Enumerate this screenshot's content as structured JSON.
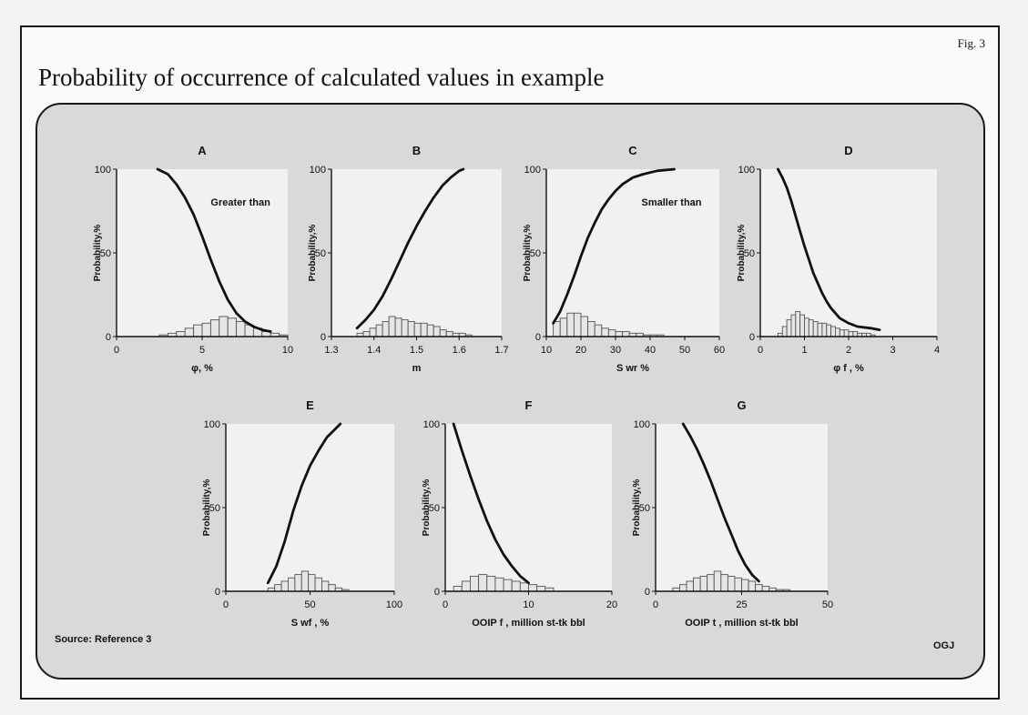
{
  "fig_label": "Fig. 3",
  "title": "Probability of occurrence of calculated values in example",
  "source": "Source: Reference 3",
  "credit": "OGJ",
  "chart_data": [
    {
      "letter": "A",
      "type": "line+histogram",
      "xlabel": "φ, %",
      "ylabel": "Probability,%",
      "xlim": [
        0,
        10
      ],
      "ylim": [
        0,
        100
      ],
      "xticks": [
        0,
        5,
        10
      ],
      "yticks": [
        0,
        50,
        100
      ],
      "annotation": "Greater than",
      "curve": [
        [
          2.4,
          100
        ],
        [
          3.0,
          97
        ],
        [
          3.5,
          91
        ],
        [
          4.0,
          83
        ],
        [
          4.5,
          73
        ],
        [
          5.0,
          60
        ],
        [
          5.5,
          46
        ],
        [
          6.0,
          33
        ],
        [
          6.5,
          22
        ],
        [
          7.0,
          14
        ],
        [
          7.5,
          9
        ],
        [
          8.0,
          6
        ],
        [
          8.5,
          4
        ],
        [
          9.0,
          3
        ]
      ],
      "histogram": {
        "start": 2.5,
        "width": 0.5,
        "values": [
          1,
          2,
          3,
          5,
          7,
          8,
          10,
          12,
          11,
          9,
          7,
          5,
          3,
          2,
          1
        ]
      }
    },
    {
      "letter": "B",
      "type": "line+histogram",
      "xlabel": "m",
      "ylabel": "Probability,%",
      "xlim": [
        1.3,
        1.7
      ],
      "ylim": [
        0,
        100
      ],
      "xticks": [
        1.3,
        1.4,
        1.5,
        1.6,
        1.7
      ],
      "yticks": [
        0,
        50,
        100
      ],
      "curve": [
        [
          1.36,
          5
        ],
        [
          1.38,
          10
        ],
        [
          1.4,
          16
        ],
        [
          1.42,
          24
        ],
        [
          1.44,
          34
        ],
        [
          1.46,
          45
        ],
        [
          1.48,
          56
        ],
        [
          1.5,
          66
        ],
        [
          1.52,
          75
        ],
        [
          1.54,
          83
        ],
        [
          1.56,
          90
        ],
        [
          1.58,
          95
        ],
        [
          1.6,
          99
        ],
        [
          1.61,
          100
        ]
      ],
      "histogram": {
        "start": 1.36,
        "width": 0.015,
        "values": [
          2,
          3,
          5,
          7,
          9,
          12,
          11,
          10,
          9,
          8,
          8,
          7,
          6,
          4,
          3,
          2,
          2,
          1
        ]
      }
    },
    {
      "letter": "C",
      "type": "line+histogram",
      "xlabel": "S wr %",
      "ylabel": "Probability,%",
      "xlim": [
        10,
        60
      ],
      "ylim": [
        0,
        100
      ],
      "xticks": [
        10,
        20,
        30,
        40,
        50,
        60
      ],
      "yticks": [
        0,
        50,
        100
      ],
      "annotation": "Smaller than",
      "curve": [
        [
          12,
          8
        ],
        [
          14,
          15
        ],
        [
          16,
          25
        ],
        [
          18,
          36
        ],
        [
          20,
          48
        ],
        [
          22,
          59
        ],
        [
          24,
          68
        ],
        [
          26,
          76
        ],
        [
          28,
          82
        ],
        [
          30,
          87
        ],
        [
          32,
          91
        ],
        [
          35,
          95
        ],
        [
          38,
          97
        ],
        [
          42,
          99
        ],
        [
          47,
          100
        ]
      ],
      "histogram": {
        "start": 12,
        "width": 2,
        "values": [
          9,
          11,
          14,
          14,
          12,
          9,
          7,
          5,
          4,
          3,
          3,
          2,
          2,
          1,
          1,
          1
        ]
      }
    },
    {
      "letter": "D",
      "type": "line+histogram",
      "xlabel": "φ f , %",
      "ylabel": "Probability,%",
      "xlim": [
        0,
        4
      ],
      "ylim": [
        0,
        100
      ],
      "xticks": [
        0,
        1,
        2,
        3,
        4
      ],
      "yticks": [
        0,
        50,
        100
      ],
      "curve": [
        [
          0.4,
          100
        ],
        [
          0.5,
          95
        ],
        [
          0.6,
          89
        ],
        [
          0.7,
          81
        ],
        [
          0.8,
          72
        ],
        [
          0.9,
          63
        ],
        [
          1.0,
          54
        ],
        [
          1.1,
          46
        ],
        [
          1.2,
          38
        ],
        [
          1.3,
          32
        ],
        [
          1.4,
          26
        ],
        [
          1.5,
          21
        ],
        [
          1.6,
          17
        ],
        [
          1.8,
          11
        ],
        [
          2.0,
          8
        ],
        [
          2.2,
          6
        ],
        [
          2.5,
          5
        ],
        [
          2.7,
          4
        ]
      ],
      "histogram": {
        "start": 0.4,
        "width": 0.1,
        "values": [
          2,
          6,
          10,
          13,
          15,
          13,
          11,
          10,
          9,
          8,
          8,
          7,
          6,
          5,
          4,
          4,
          3,
          3,
          2,
          2,
          2,
          1
        ]
      }
    },
    {
      "letter": "E",
      "type": "line+histogram",
      "xlabel": "S wf , %",
      "ylabel": "Probability,%",
      "xlim": [
        0,
        100
      ],
      "ylim": [
        0,
        100
      ],
      "xticks": [
        0,
        50,
        100
      ],
      "yticks": [
        0,
        50,
        100
      ],
      "curve": [
        [
          25,
          5
        ],
        [
          30,
          15
        ],
        [
          35,
          30
        ],
        [
          40,
          48
        ],
        [
          45,
          63
        ],
        [
          50,
          75
        ],
        [
          55,
          84
        ],
        [
          60,
          92
        ],
        [
          65,
          97
        ],
        [
          68,
          100
        ]
      ],
      "histogram": {
        "start": 25,
        "width": 4,
        "values": [
          2,
          4,
          6,
          8,
          10,
          12,
          10,
          8,
          6,
          4,
          2,
          1
        ]
      }
    },
    {
      "letter": "F",
      "type": "line+histogram",
      "xlabel": "OOIP f , million st-tk bbl",
      "ylabel": "Probability,%",
      "xlim": [
        0,
        20
      ],
      "ylim": [
        0,
        100
      ],
      "xticks": [
        0,
        10,
        20
      ],
      "yticks": [
        0,
        50,
        100
      ],
      "curve": [
        [
          1.0,
          100
        ],
        [
          1.5,
          92
        ],
        [
          2.0,
          84
        ],
        [
          3.0,
          69
        ],
        [
          4.0,
          55
        ],
        [
          5.0,
          42
        ],
        [
          6.0,
          31
        ],
        [
          7.0,
          22
        ],
        [
          8.0,
          15
        ],
        [
          9.0,
          9
        ],
        [
          10.0,
          5
        ]
      ],
      "histogram": {
        "start": 1.0,
        "width": 1.0,
        "values": [
          3,
          6,
          9,
          10,
          9,
          8,
          7,
          6,
          5,
          4,
          3,
          2
        ]
      }
    },
    {
      "letter": "G",
      "type": "line+histogram",
      "xlabel": "OOIP t , million st-tk bbl",
      "ylabel": "Probability,%",
      "xlim": [
        0,
        50
      ],
      "ylim": [
        0,
        100
      ],
      "xticks": [
        0,
        25,
        50
      ],
      "yticks": [
        0,
        50,
        100
      ],
      "curve": [
        [
          8,
          100
        ],
        [
          10,
          93
        ],
        [
          12,
          85
        ],
        [
          14,
          76
        ],
        [
          16,
          66
        ],
        [
          18,
          55
        ],
        [
          20,
          44
        ],
        [
          22,
          34
        ],
        [
          24,
          24
        ],
        [
          26,
          16
        ],
        [
          28,
          10
        ],
        [
          30,
          6
        ]
      ],
      "histogram": {
        "start": 5,
        "width": 2,
        "values": [
          2,
          4,
          6,
          8,
          9,
          10,
          12,
          10,
          9,
          8,
          7,
          6,
          4,
          3,
          2,
          1,
          1
        ]
      }
    }
  ]
}
